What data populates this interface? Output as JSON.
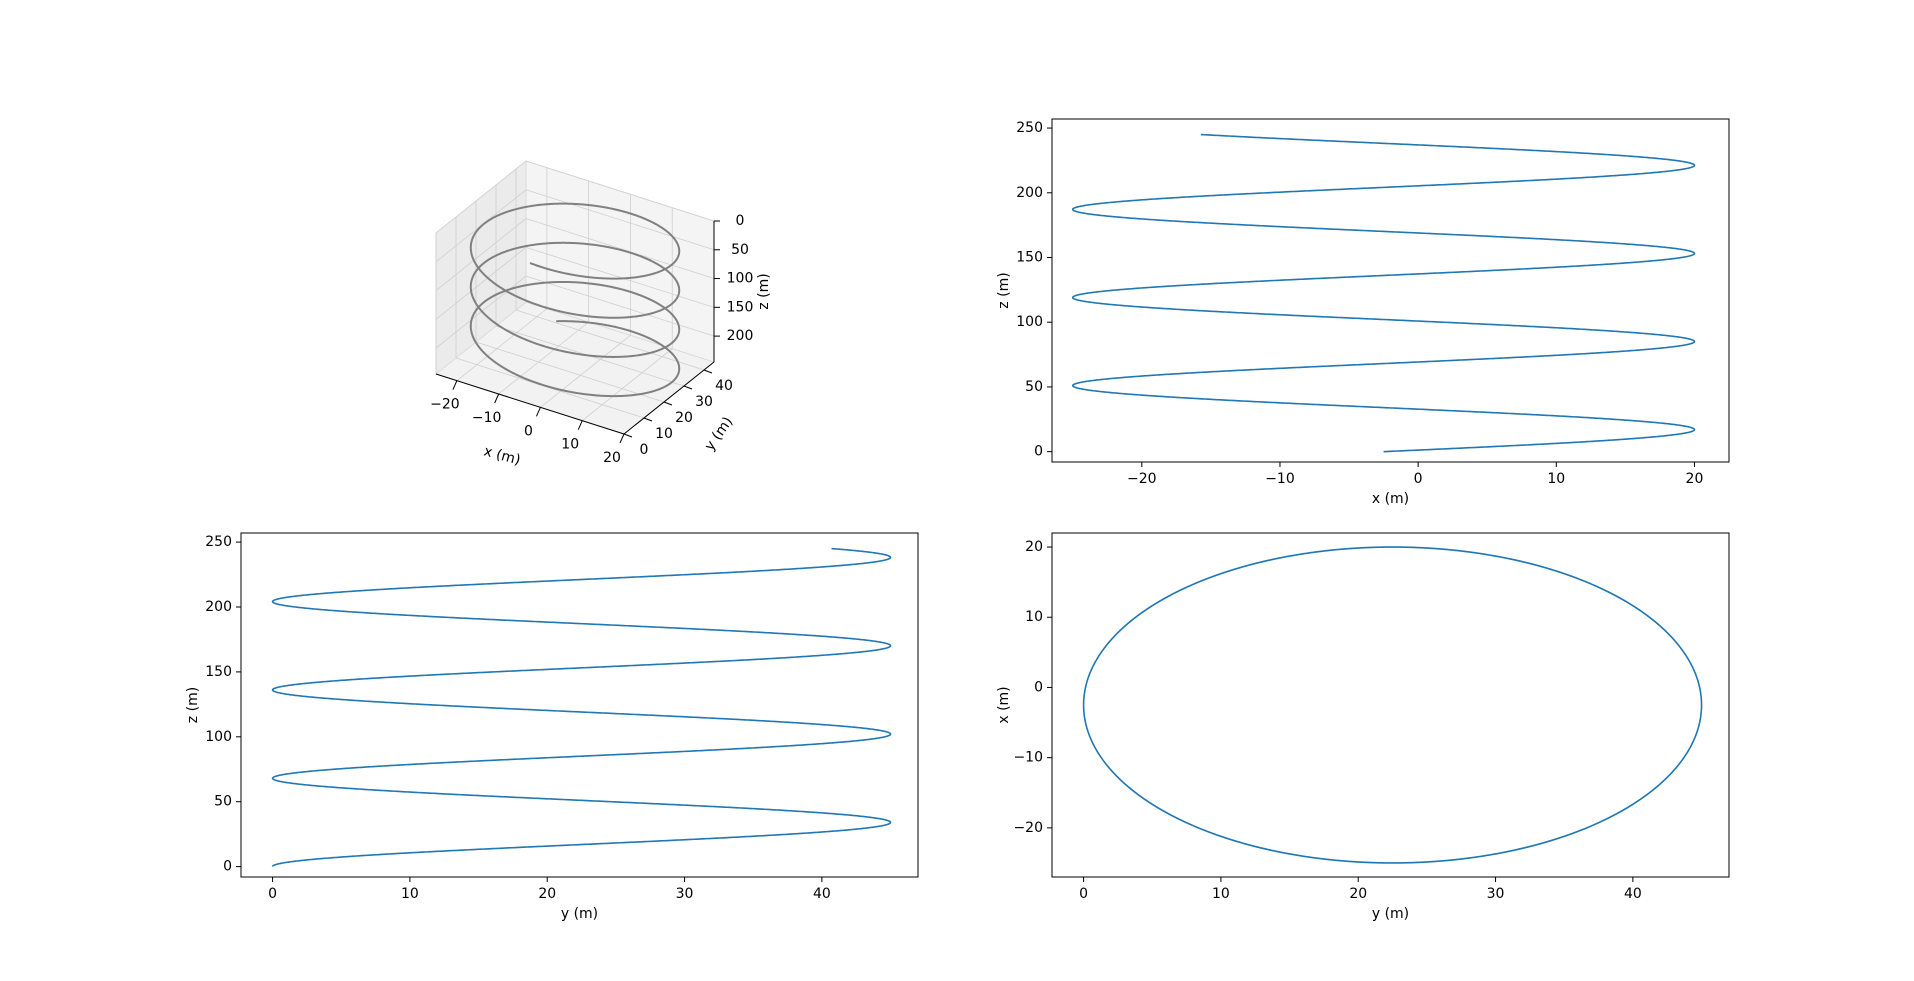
{
  "chart_data": [
    {
      "type": "line3d",
      "xlabel": "x (m)",
      "ylabel": "y (m)",
      "zlabel": "z (m)",
      "xlim": [
        -25,
        20
      ],
      "ylim": [
        0,
        45
      ],
      "zlim": [
        0,
        245
      ],
      "z_inverted": true,
      "xticks": [
        -20,
        -10,
        0,
        10,
        20
      ],
      "yticks": [
        0,
        10,
        20,
        30,
        40
      ],
      "zticks": [
        0,
        50,
        100,
        150,
        200
      ],
      "series_color": "#808080",
      "curve": {
        "x_center": -2.5,
        "x_amplitude": 22.5,
        "y_center": 22.5,
        "y_amplitude": 22.5,
        "turns": 3.6,
        "z_end": 245
      }
    },
    {
      "type": "line",
      "xlabel": "x (m)",
      "ylabel": "z (m)",
      "xlim": [
        -26.5,
        22.5
      ],
      "ylim": [
        -8,
        257
      ],
      "xticks": [
        -20,
        -10,
        0,
        10,
        20
      ],
      "yticks": [
        0,
        50,
        100,
        150,
        200,
        250
      ],
      "series_color": "#1f77b4",
      "curve": {
        "x_center": -2.5,
        "x_amplitude": 22.5,
        "phase": "sin",
        "turns": 3.6,
        "z_end": 245
      }
    },
    {
      "type": "line",
      "xlabel": "y (m)",
      "ylabel": "z (m)",
      "xlim": [
        -2.3,
        47
      ],
      "ylim": [
        -8,
        257
      ],
      "xticks": [
        0,
        10,
        20,
        30,
        40
      ],
      "yticks": [
        0,
        50,
        100,
        150,
        200,
        250
      ],
      "series_color": "#1f77b4",
      "curve": {
        "y_center": 22.5,
        "y_amplitude": 22.5,
        "phase": "cos",
        "turns": 3.6,
        "z_end": 245
      }
    },
    {
      "type": "line",
      "xlabel": "y (m)",
      "ylabel": "x (m)",
      "xlim": [
        -2.3,
        47
      ],
      "ylim": [
        -27,
        22
      ],
      "xticks": [
        0,
        10,
        20,
        30,
        40
      ],
      "yticks": [
        -20,
        -10,
        0,
        10,
        20
      ],
      "series_color": "#1f77b4",
      "curve": {
        "x_center": -2.5,
        "x_amplitude": 22.5,
        "y_center": 22.5,
        "y_amplitude": 22.5,
        "turns": 3.6
      }
    }
  ]
}
